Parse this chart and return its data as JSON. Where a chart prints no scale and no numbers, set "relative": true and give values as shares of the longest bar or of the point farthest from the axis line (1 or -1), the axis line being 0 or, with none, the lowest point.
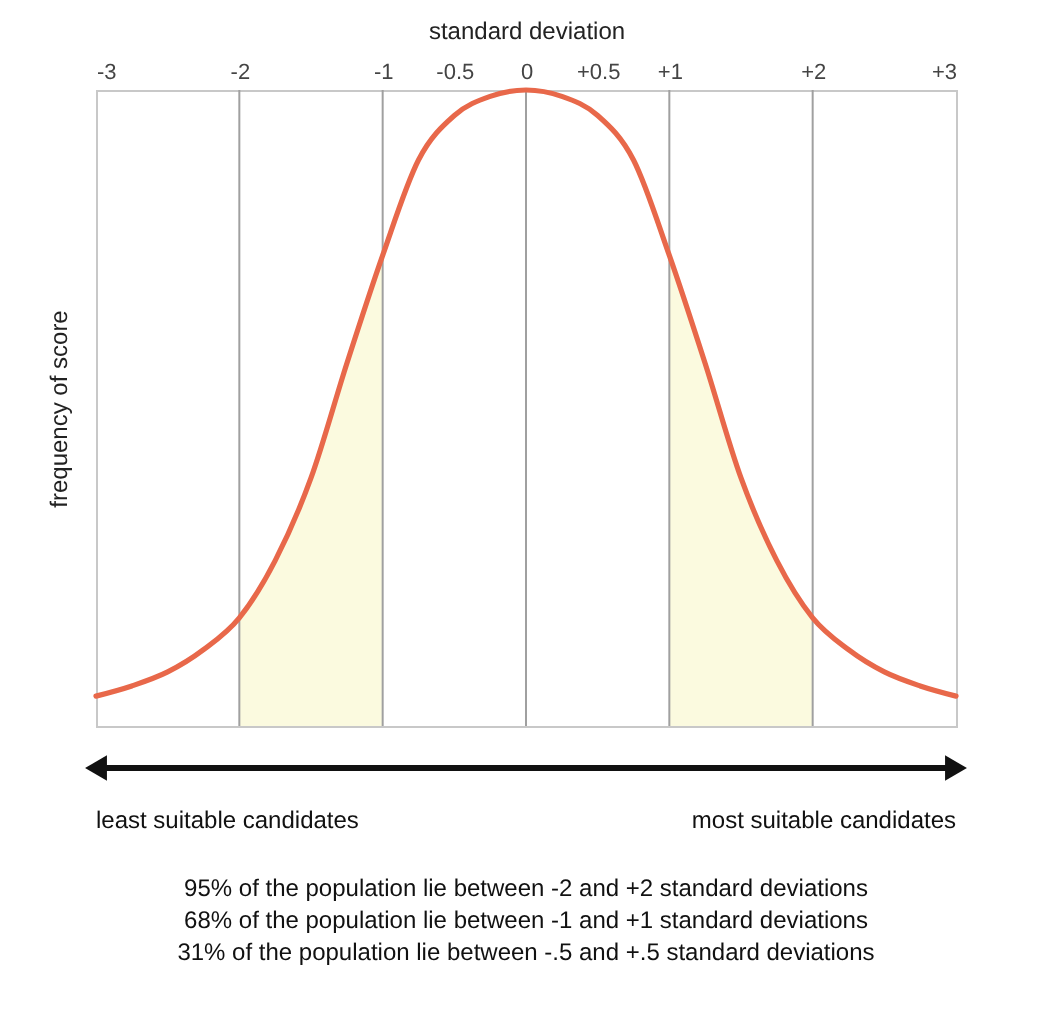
{
  "chart_data": {
    "type": "line",
    "relative": true,
    "xlabel": "standard deviation",
    "ylabel": "frequency of score",
    "xlim": [
      -3,
      3
    ],
    "xticks": [
      -3,
      -2,
      -1,
      -0.5,
      0,
      {
        "value": 0.5,
        "label": "+0.5"
      },
      {
        "value": 1,
        "label": "+1"
      },
      {
        "value": 2,
        "label": "+2"
      },
      {
        "value": 3,
        "label": "+3"
      }
    ],
    "series": [
      {
        "type": "area",
        "color": "#fbfadf",
        "x": [
          -2,
          -1.75,
          -1.5,
          -1.25,
          -1
        ],
        "values": [
          0.17,
          0.26,
          0.39,
          0.57,
          0.74
        ]
      },
      {
        "type": "area",
        "color": "#fbfadf",
        "x": [
          1,
          1.25,
          1.5,
          1.75,
          2
        ],
        "values": [
          0.74,
          0.57,
          0.39,
          0.26,
          0.17
        ]
      },
      {
        "color": "#e8684a",
        "x": [
          -3,
          -2.75,
          -2.5,
          -2.25,
          -2,
          -1.75,
          -1.5,
          -1.25,
          -1,
          -0.75,
          -0.5,
          -0.25,
          0,
          0.25,
          0.5,
          0.75,
          1,
          1.25,
          1.5,
          1.75,
          2,
          2.25,
          2.5,
          2.75,
          3
        ],
        "values": [
          0.047,
          0.063,
          0.085,
          0.12,
          0.17,
          0.26,
          0.39,
          0.57,
          0.74,
          0.89,
          0.96,
          0.99,
          1,
          0.99,
          0.96,
          0.89,
          0.74,
          0.57,
          0.39,
          0.26,
          0.17,
          0.12,
          0.085,
          0.063,
          0.047
        ]
      }
    ],
    "ref_lines": [
      {
        "axis": "x",
        "value": -2,
        "color": "#a0a0a0"
      },
      {
        "axis": "x",
        "value": -1,
        "color": "#a0a0a0"
      },
      {
        "axis": "x",
        "value": 0,
        "color": "#a0a0a0"
      },
      {
        "axis": "x",
        "value": 1,
        "color": "#a0a0a0"
      },
      {
        "axis": "x",
        "value": 2,
        "color": "#a0a0a0"
      }
    ],
    "grid": false,
    "annotations": [
      "least suitable candidates",
      "most suitable candidates",
      "95% of the population lie between -2 and +2 standard deviations",
      "68% of the population lie between -1 and +1 standard deviations",
      "31% of the population lie between -.5 and +.5 standard deviations"
    ]
  }
}
